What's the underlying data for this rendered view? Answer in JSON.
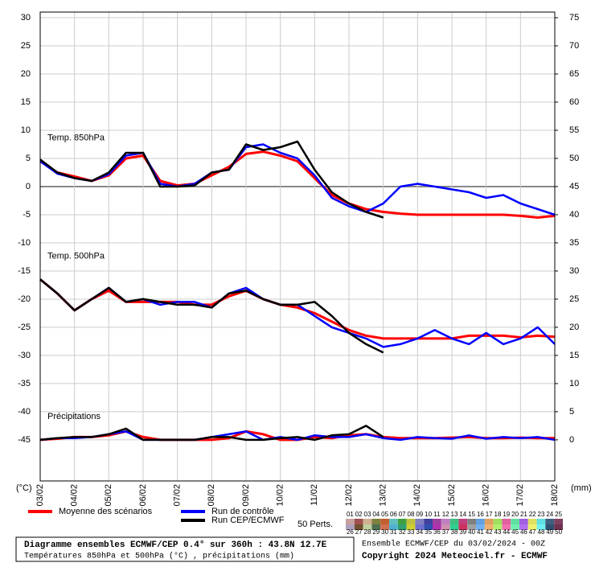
{
  "chart_data": {
    "type": "line",
    "title": "Diagramme ensembles ECMWF/CEP 0.4° sur 360h : 43.8N 12.7E",
    "subtitle": "Températures 850hPa et 500hPa (°C) , précipitations (mm)",
    "run_info": "Ensemble ECMWF/CEP du 03/02/2024 - 00Z",
    "copyright": "Copyright 2024 Meteociel.fr - ECMWF",
    "y_unit": "(°C)",
    "y2_unit": "(mm)",
    "x": [
      0,
      12,
      24,
      36,
      48,
      60,
      72,
      84,
      96,
      108,
      120,
      132,
      144,
      156,
      168,
      180,
      192,
      204,
      216,
      228,
      240,
      252,
      264,
      276,
      288,
      300,
      312,
      324,
      336,
      348,
      360
    ],
    "xlim": [
      0,
      360
    ],
    "xticks": [
      {
        "value": 0,
        "label": "03/02"
      },
      {
        "value": 24,
        "label": "04/02"
      },
      {
        "value": 48,
        "label": "05/02"
      },
      {
        "value": 72,
        "label": "06/02"
      },
      {
        "value": 96,
        "label": "07/02"
      },
      {
        "value": 120,
        "label": "08/02"
      },
      {
        "value": 144,
        "label": "09/02"
      },
      {
        "value": 168,
        "label": "10/02"
      },
      {
        "value": 192,
        "label": "11/02"
      },
      {
        "value": 216,
        "label": "12/02"
      },
      {
        "value": 240,
        "label": "13/02"
      },
      {
        "value": 264,
        "label": "14/02"
      },
      {
        "value": 288,
        "label": "15/02"
      },
      {
        "value": 312,
        "label": "16/02"
      },
      {
        "value": 336,
        "label": "17/02"
      },
      {
        "value": 360,
        "label": "18/02"
      }
    ],
    "ylim": [
      -52.3,
      31
    ],
    "yticks": [
      30,
      25,
      20,
      15,
      10,
      5,
      0,
      -5,
      -10,
      -15,
      -20,
      -25,
      -30,
      -35,
      -40,
      -45
    ],
    "y2lim": [
      -7.3,
      76
    ],
    "y2ticks": [
      75,
      70,
      65,
      60,
      55,
      50,
      45,
      40,
      35,
      30,
      25,
      20,
      15,
      10,
      5,
      0
    ],
    "grid": true,
    "panels": [
      {
        "label": "Temp. 850hPa",
        "series": [
          {
            "name": "Moyenne des scénarios",
            "color": "#ff0000",
            "width": 3,
            "values": [
              4.5,
              2.5,
              1.8,
              1.0,
              2,
              5,
              5.5,
              1,
              0.2,
              0.5,
              2,
              3.5,
              5.8,
              6.2,
              5.5,
              4.5,
              1.5,
              -1.5,
              -3,
              -4,
              -4.5,
              -4.8,
              -5,
              -5,
              -5,
              -5,
              -5,
              -5,
              -5.2,
              -5.5,
              -5.2
            ]
          },
          {
            "name": "Run de contrôle",
            "color": "#0000ff",
            "width": 2.5,
            "values": [
              4.5,
              2.3,
              1.5,
              1.0,
              2.2,
              5.5,
              6,
              0.5,
              0,
              0.5,
              2.5,
              3,
              7,
              7.5,
              6,
              5,
              2,
              -2,
              -3.5,
              -4.5,
              -3,
              0,
              0.5,
              0,
              -0.5,
              -1,
              -2,
              -1.5,
              -3,
              -4,
              -5
            ]
          },
          {
            "name": "Run CEP/ECMWF",
            "color": "#000000",
            "width": 2.5,
            "values": [
              4.8,
              2.5,
              1.5,
              1,
              2.5,
              6,
              6,
              0,
              0,
              0.2,
              2.5,
              3,
              7.5,
              6.5,
              7,
              8,
              3,
              -1,
              -3,
              -4.5,
              -5.5,
              null,
              null,
              null,
              null,
              null,
              null,
              null,
              null,
              null,
              null
            ]
          }
        ]
      },
      {
        "label": "Temp. 500hPa",
        "series": [
          {
            "name": "Moyenne des scénarios",
            "color": "#ff0000",
            "width": 3,
            "values": [
              -16.5,
              -19,
              -22,
              -20,
              -18.5,
              -20.5,
              -20.5,
              -20.5,
              -20.5,
              -21,
              -21,
              -19.5,
              -18.5,
              -20,
              -21,
              -21.5,
              -22.5,
              -24,
              -25.5,
              -26.5,
              -27,
              -27,
              -27,
              -27,
              -27,
              -26.5,
              -26.5,
              -26.5,
              -26.8,
              -26.5,
              -26.7
            ]
          },
          {
            "name": "Run de contrôle",
            "color": "#0000ff",
            "width": 2.5,
            "values": [
              -16.5,
              -19,
              -22,
              -20,
              -18,
              -20.5,
              -20,
              -21,
              -20.5,
              -20.5,
              -21.5,
              -19,
              -18,
              -20,
              -21,
              -21,
              -23,
              -25,
              -26,
              -27,
              -28.5,
              -28,
              -27,
              -25.5,
              -27,
              -28,
              -26,
              -28,
              -27,
              -25,
              -28
            ]
          },
          {
            "name": "Run CEP/ECMWF",
            "color": "#000000",
            "width": 2.5,
            "values": [
              -16.5,
              -19,
              -22,
              -20,
              -18,
              -20.5,
              -20,
              -20.5,
              -21,
              -21,
              -21.5,
              -19,
              -18.5,
              -20,
              -21,
              -21,
              -20.5,
              -23,
              -26,
              -28,
              -29.5,
              null,
              null,
              null,
              null,
              null,
              null,
              null,
              null,
              null,
              null
            ]
          }
        ]
      },
      {
        "label": "Précipitations",
        "axis": "y2",
        "series": [
          {
            "name": "Moyenne des scénarios",
            "color": "#ff0000",
            "width": 3,
            "values": [
              0,
              0.2,
              0.5,
              0.5,
              0.8,
              1.5,
              0.5,
              0,
              0,
              0,
              0,
              0.3,
              1.5,
              1,
              0,
              0,
              0.5,
              0.3,
              0.8,
              1,
              0.5,
              0.3,
              0.3,
              0.3,
              0.4,
              0.5,
              0.3,
              0.3,
              0.4,
              0.3,
              0.3
            ]
          },
          {
            "name": "Run de contrôle",
            "color": "#0000ff",
            "width": 2.5,
            "values": [
              0,
              0.3,
              0.3,
              0.5,
              1,
              1.5,
              0,
              0,
              0,
              0,
              0.5,
              1,
              1.5,
              0,
              0.5,
              0,
              0.8,
              0.5,
              0.5,
              1,
              0.3,
              0,
              0.5,
              0.3,
              0.2,
              0.8,
              0.2,
              0.5,
              0.3,
              0.5,
              0
            ]
          },
          {
            "name": "Run CEP/ECMWF",
            "color": "#000000",
            "width": 2.5,
            "values": [
              0,
              0.3,
              0.5,
              0.5,
              1,
              2,
              0,
              0,
              0,
              0,
              0.5,
              0.5,
              0,
              0,
              0.3,
              0.5,
              0,
              0.8,
              1,
              2.5,
              0.5,
              null,
              null,
              null,
              null,
              null,
              null,
              null,
              null,
              null,
              null
            ]
          }
        ]
      }
    ],
    "perts_label": "50 Perts.",
    "perts": [
      {
        "name": "01",
        "color": "#c8a0a0"
      },
      {
        "name": "02",
        "color": "#a05050"
      },
      {
        "name": "03",
        "color": "#d0b090"
      },
      {
        "name": "04",
        "color": "#808040"
      },
      {
        "name": "05",
        "color": "#c06030"
      },
      {
        "name": "06",
        "color": "#60c0c0"
      },
      {
        "name": "07",
        "color": "#40a040"
      },
      {
        "name": "08",
        "color": "#c0c040"
      },
      {
        "name": "09",
        "color": "#8080c0"
      },
      {
        "name": "10",
        "color": "#4040a0"
      },
      {
        "name": "11",
        "color": "#a040a0"
      },
      {
        "name": "12",
        "color": "#c080c0"
      },
      {
        "name": "13",
        "color": "#40c080"
      },
      {
        "name": "14",
        "color": "#c04080"
      },
      {
        "name": "15",
        "color": "#808080"
      },
      {
        "name": "16",
        "color": "#60a0e0"
      },
      {
        "name": "17",
        "color": "#e0a060"
      },
      {
        "name": "18",
        "color": "#a0e060"
      },
      {
        "name": "19",
        "color": "#e060a0"
      },
      {
        "name": "20",
        "color": "#60e0a0"
      },
      {
        "name": "21",
        "color": "#a060e0"
      },
      {
        "name": "22",
        "color": "#e0e060"
      },
      {
        "name": "23",
        "color": "#60e0e0"
      },
      {
        "name": "24",
        "color": "#406080"
      },
      {
        "name": "25",
        "color": "#804060"
      },
      {
        "name": "26",
        "color": "#b0a0c0"
      },
      {
        "name": "27",
        "color": "#705030"
      },
      {
        "name": "28",
        "color": "#c0d0a0"
      },
      {
        "name": "29",
        "color": "#507050"
      },
      {
        "name": "30",
        "color": "#d07050"
      },
      {
        "name": "31",
        "color": "#50b0d0"
      },
      {
        "name": "32",
        "color": "#30a070"
      },
      {
        "name": "33",
        "color": "#d0d030"
      },
      {
        "name": "34",
        "color": "#7070d0"
      },
      {
        "name": "35",
        "color": "#3050b0"
      },
      {
        "name": "36",
        "color": "#b030b0"
      },
      {
        "name": "37",
        "color": "#d090b0"
      },
      {
        "name": "38",
        "color": "#30d090"
      },
      {
        "name": "39",
        "color": "#d03060"
      },
      {
        "name": "40",
        "color": "#a0a0a0"
      },
      {
        "name": "41",
        "color": "#70b0f0"
      },
      {
        "name": "42",
        "color": "#f0b070"
      },
      {
        "name": "43",
        "color": "#b0f070"
      },
      {
        "name": "44",
        "color": "#f070b0"
      },
      {
        "name": "45",
        "color": "#70f0b0"
      },
      {
        "name": "46",
        "color": "#b070f0"
      },
      {
        "name": "47",
        "color": "#f0f070"
      },
      {
        "name": "48",
        "color": "#70f0f0"
      },
      {
        "name": "49",
        "color": "#305070"
      },
      {
        "name": "50",
        "color": "#703050"
      }
    ]
  }
}
